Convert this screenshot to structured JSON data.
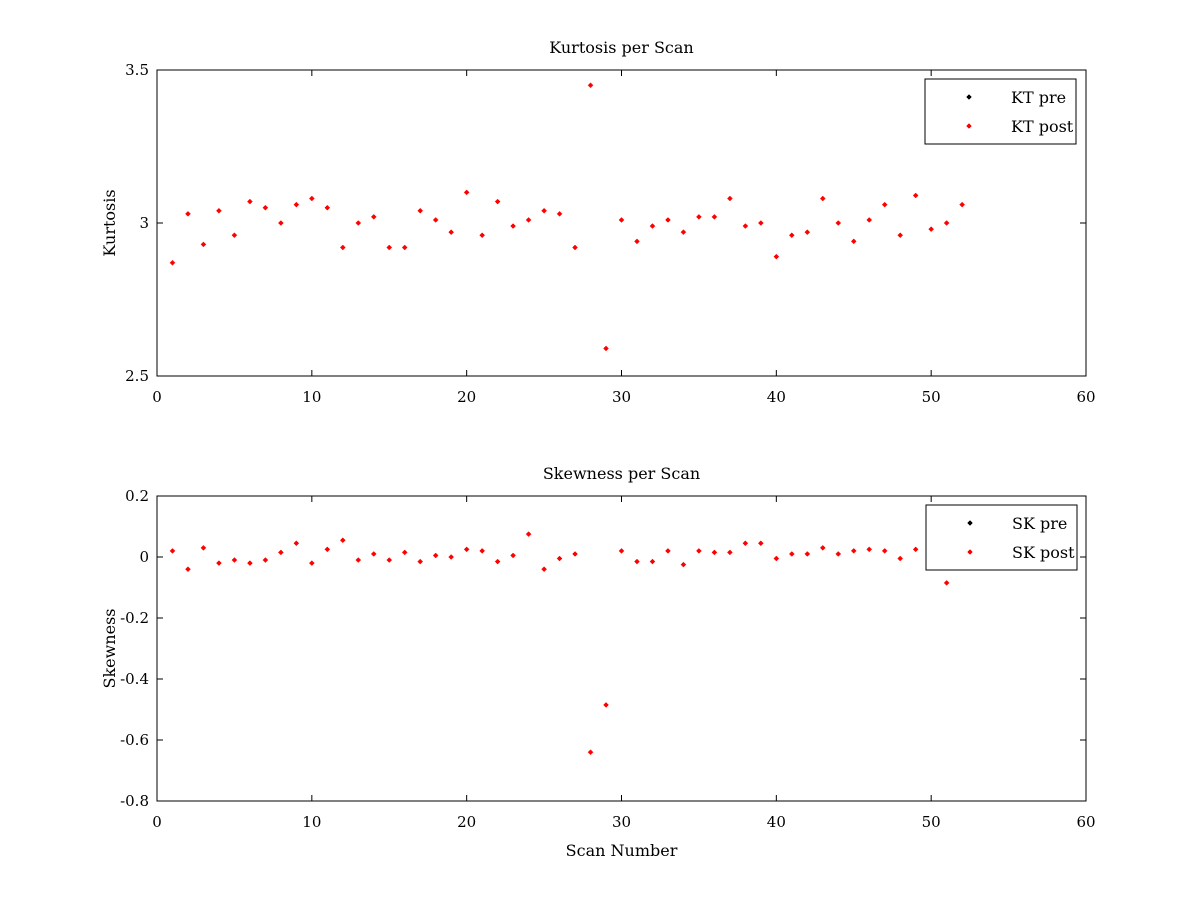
{
  "chart_data": [
    {
      "type": "scatter",
      "title": "Kurtosis per Scan",
      "xlabel": "",
      "ylabel": "Kurtosis",
      "xlim": [
        0,
        60
      ],
      "ylim": [
        2.5,
        3.5
      ],
      "xticks": [
        "0",
        "10",
        "20",
        "30",
        "40",
        "50",
        "60"
      ],
      "yticks": [
        "2.5",
        "3",
        "3.5"
      ],
      "grid": false,
      "legend_position": "top-right",
      "series": [
        {
          "name": "KT pre",
          "color": "#000000",
          "x": [],
          "y": []
        },
        {
          "name": "KT post",
          "color": "#ff0000",
          "x": [
            1,
            2,
            3,
            4,
            5,
            6,
            7,
            8,
            9,
            10,
            11,
            12,
            13,
            14,
            15,
            16,
            17,
            18,
            19,
            20,
            21,
            22,
            23,
            24,
            25,
            26,
            27,
            28,
            29,
            30,
            31,
            32,
            33,
            34,
            35,
            36,
            37,
            38,
            39,
            40,
            41,
            42,
            43,
            44,
            45,
            46,
            47,
            48,
            49,
            50,
            51,
            52
          ],
          "y": [
            2.87,
            3.03,
            2.93,
            3.04,
            2.96,
            3.07,
            3.05,
            3.0,
            3.06,
            3.08,
            3.05,
            2.92,
            3.0,
            3.02,
            2.92,
            2.92,
            3.04,
            3.01,
            2.97,
            3.1,
            2.96,
            3.07,
            2.99,
            3.01,
            3.04,
            3.03,
            2.92,
            3.45,
            2.59,
            3.01,
            2.94,
            2.99,
            3.01,
            2.97,
            3.02,
            3.02,
            3.08,
            2.99,
            3.0,
            2.89,
            2.96,
            2.97,
            3.08,
            3.0,
            2.94,
            3.01,
            3.06,
            2.96,
            3.09,
            2.98,
            3.0,
            3.06
          ]
        }
      ]
    },
    {
      "type": "scatter",
      "title": "Skewness per Scan",
      "xlabel": "Scan Number",
      "ylabel": "Skewness",
      "xlim": [
        0,
        60
      ],
      "ylim": [
        -0.8,
        0.2
      ],
      "xticks": [
        "0",
        "10",
        "20",
        "30",
        "40",
        "50",
        "60"
      ],
      "yticks": [
        "-0.8",
        "-0.6",
        "-0.4",
        "-0.2",
        "0",
        "0.2"
      ],
      "grid": false,
      "legend_position": "top-right",
      "series": [
        {
          "name": "SK pre",
          "color": "#000000",
          "x": [],
          "y": []
        },
        {
          "name": "SK post",
          "color": "#ff0000",
          "x": [
            1,
            2,
            3,
            4,
            5,
            6,
            7,
            8,
            9,
            10,
            11,
            12,
            13,
            14,
            15,
            16,
            17,
            18,
            19,
            20,
            21,
            22,
            23,
            24,
            25,
            26,
            27,
            28,
            29,
            30,
            31,
            32,
            33,
            34,
            35,
            36,
            37,
            38,
            39,
            40,
            41,
            42,
            43,
            44,
            45,
            46,
            47,
            48,
            49,
            50,
            51
          ],
          "y": [
            0.02,
            -0.04,
            0.03,
            -0.02,
            -0.01,
            -0.02,
            -0.01,
            0.015,
            0.045,
            -0.02,
            0.025,
            0.055,
            -0.01,
            0.01,
            -0.01,
            0.015,
            -0.015,
            0.005,
            0.0,
            0.025,
            0.02,
            -0.015,
            0.005,
            0.075,
            -0.04,
            -0.005,
            0.01,
            -0.64,
            -0.485,
            0.02,
            -0.015,
            -0.015,
            0.02,
            -0.025,
            0.02,
            0.015,
            0.015,
            0.045,
            0.045,
            -0.005,
            0.01,
            0.01,
            0.03,
            0.01,
            0.02,
            0.025,
            0.02,
            -0.005,
            0.025,
            0.0,
            -0.085
          ]
        }
      ]
    }
  ]
}
